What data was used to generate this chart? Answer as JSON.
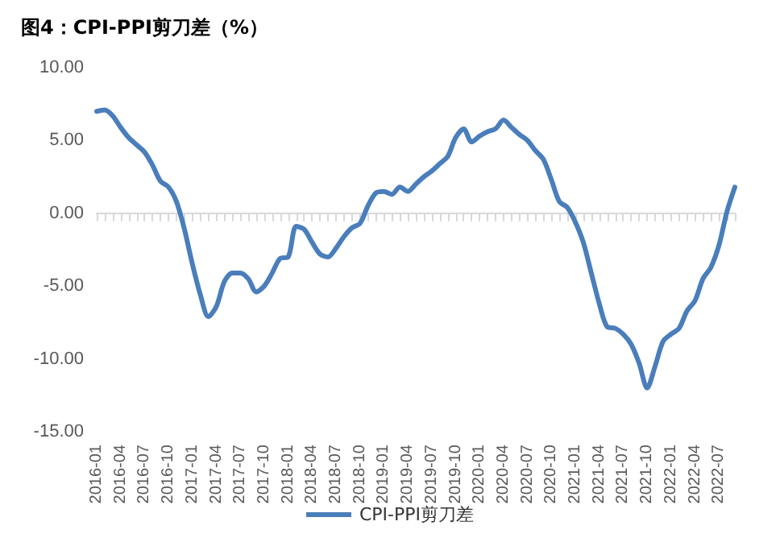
{
  "chart_data": {
    "type": "line",
    "title": "图4：CPI-PPI剪刀差（%）",
    "categories": [
      "2016-01",
      null,
      null,
      "2016-04",
      null,
      null,
      "2016-07",
      null,
      null,
      "2016-10",
      null,
      null,
      "2017-01",
      null,
      null,
      "2017-04",
      null,
      null,
      "2017-07",
      null,
      null,
      "2017-10",
      null,
      null,
      "2018-01",
      null,
      null,
      "2018-04",
      null,
      null,
      "2018-07",
      null,
      null,
      "2018-10",
      null,
      null,
      "2019-01",
      null,
      null,
      "2019-04",
      null,
      null,
      "2019-07",
      null,
      null,
      "2019-10",
      null,
      null,
      "2020-01",
      null,
      null,
      "2020-04",
      null,
      null,
      "2020-07",
      null,
      null,
      "2020-10",
      null,
      null,
      "2021-01",
      null,
      null,
      "2021-04",
      null,
      null,
      "2021-07",
      null,
      null,
      "2021-10",
      null,
      null,
      "2022-01",
      null,
      null,
      "2022-04",
      null,
      null,
      "2022-07",
      null,
      null
    ],
    "series": [
      {
        "name": "CPI-PPI剪刀差",
        "color": "#4a7ebb",
        "values": [
          7.0,
          7.1,
          6.7,
          5.9,
          5.2,
          4.7,
          4.2,
          3.3,
          2.2,
          1.8,
          0.8,
          -1.1,
          -3.5,
          -5.6,
          -7.1,
          -6.4,
          -4.7,
          -4.1,
          -4.1,
          -4.5,
          -5.4,
          -5.0,
          -4.1,
          -3.1,
          -3.0,
          -0.9,
          -1.1,
          -2.0,
          -2.8,
          -3.0,
          -2.4,
          -1.6,
          -1.0,
          -0.7,
          0.5,
          1.4,
          1.5,
          1.3,
          1.8,
          1.5,
          2.0,
          2.5,
          2.9,
          3.4,
          3.9,
          5.2,
          5.8,
          4.9,
          5.3,
          5.6,
          5.8,
          6.4,
          5.9,
          5.4,
          5.0,
          4.3,
          3.7,
          2.3,
          0.8,
          0.4,
          -0.6,
          -2.0,
          -4.1,
          -6.2,
          -7.8,
          -7.9,
          -8.3,
          -9.0,
          -10.3,
          -12.0,
          -10.5,
          -8.8,
          -8.3,
          -7.9,
          -6.7,
          -6.0,
          -4.5,
          -3.7,
          -2.2,
          0.1,
          1.8
        ]
      }
    ],
    "ylim": [
      -15,
      10
    ],
    "yticks": [
      {
        "value": -15,
        "label": "-15.00"
      },
      {
        "value": -10,
        "label": "-10.00"
      },
      {
        "value": -5,
        "label": "-5.00"
      },
      {
        "value": 0,
        "label": "0.00"
      },
      {
        "value": 5,
        "label": "5.00"
      },
      {
        "value": 10,
        "label": "10.00"
      }
    ],
    "legend": "bottom",
    "marker": "none",
    "line_style": "solid"
  }
}
